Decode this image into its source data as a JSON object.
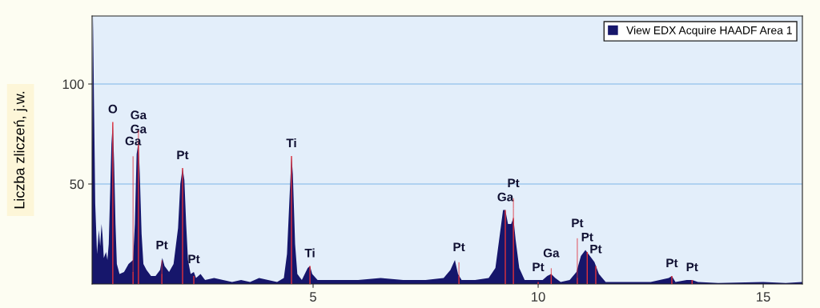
{
  "chart_data": {
    "type": "area",
    "ylabel": "Liczba zliczeń, j.w.",
    "xlim": [
      0.09,
      15.87
    ],
    "ylim": [
      0,
      134
    ],
    "xticks": [
      5,
      10,
      15
    ],
    "yticks": [
      50,
      100
    ],
    "grid": "y",
    "legend": "top right",
    "series": [
      {
        "name": "View EDX Acquire HAADF Area 1",
        "color": "#16166b",
        "x": [
          0.09,
          0.11,
          0.13,
          0.16,
          0.2,
          0.24,
          0.27,
          0.3,
          0.32,
          0.35,
          0.4,
          0.43,
          0.46,
          0.49,
          0.52,
          0.55,
          0.58,
          0.61,
          0.64,
          0.7,
          0.8,
          0.9,
          0.95,
          1.0,
          1.04,
          1.08,
          1.12,
          1.15,
          1.19,
          1.23,
          1.3,
          1.4,
          1.5,
          1.6,
          1.65,
          1.7,
          1.8,
          1.9,
          2.0,
          2.05,
          2.1,
          2.14,
          2.18,
          2.22,
          2.28,
          2.35,
          2.4,
          2.5,
          2.6,
          2.8,
          3.0,
          3.2,
          3.4,
          3.6,
          3.8,
          4.0,
          4.2,
          4.35,
          4.42,
          4.48,
          4.52,
          4.55,
          4.6,
          4.65,
          4.75,
          4.88,
          4.93,
          4.98,
          5.1,
          5.5,
          6.0,
          6.5,
          7.0,
          7.5,
          7.9,
          8.05,
          8.15,
          8.22,
          8.3,
          8.6,
          8.9,
          9.05,
          9.15,
          9.22,
          9.27,
          9.33,
          9.4,
          9.45,
          9.5,
          9.58,
          9.7,
          9.9,
          10.1,
          10.2,
          10.29,
          10.38,
          10.5,
          10.7,
          10.85,
          10.95,
          11.05,
          11.15,
          11.25,
          11.35,
          11.5,
          12.0,
          12.5,
          12.9,
          12.97,
          13.05,
          13.3,
          13.42,
          13.55,
          14.0,
          15.0,
          15.5,
          15.87
        ],
        "values": [
          65,
          134,
          95,
          40,
          15,
          27,
          19,
          30,
          25,
          13,
          16,
          12,
          20,
          45,
          70,
          81,
          60,
          30,
          10,
          5,
          6,
          10,
          11,
          12,
          30,
          65,
          71,
          55,
          25,
          10,
          7,
          4,
          4,
          7,
          13,
          9,
          6,
          10,
          28,
          50,
          58,
          52,
          30,
          12,
          5,
          6,
          3,
          5,
          2,
          3,
          2,
          1,
          2,
          1,
          3,
          2,
          1,
          3,
          15,
          45,
          64,
          55,
          20,
          5,
          2,
          8,
          9,
          5,
          2,
          2,
          2,
          3,
          2,
          2,
          3,
          7,
          12,
          5,
          2,
          2,
          3,
          8,
          25,
          37,
          37,
          30,
          30,
          33,
          22,
          8,
          2,
          2,
          2,
          4,
          5,
          3,
          1,
          2,
          6,
          14,
          17,
          14,
          11,
          5,
          1,
          1,
          1,
          3,
          4,
          1,
          2,
          2,
          1,
          0.5,
          1,
          0.5,
          1
        ]
      },
      {
        "type": "bar",
        "color": "#e0303a",
        "x": [
          0.55,
          1.0,
          1.12,
          1.64,
          2.1,
          2.35,
          4.52,
          4.93,
          8.24,
          9.27,
          9.45,
          10.0,
          10.29,
          10.87,
          11.09,
          11.28,
          12.97,
          13.42
        ],
        "values": [
          81,
          6,
          71,
          5,
          58,
          4,
          64,
          9,
          4,
          37,
          33,
          1,
          5,
          3,
          16,
          9,
          4,
          2
        ]
      }
    ],
    "annotations": [
      {
        "text": "O",
        "x": 0.55,
        "y": 81
      },
      {
        "text": "Ga",
        "x": 1.12,
        "y": 71
      },
      {
        "text": "Ga",
        "x": 1.12,
        "y": 71
      },
      {
        "text": "Ga",
        "x": 1.0,
        "y": 6
      },
      {
        "text": "Pt",
        "x": 2.1,
        "y": 58
      },
      {
        "text": "Pt",
        "x": 1.64,
        "y": 5
      },
      {
        "text": "Pt",
        "x": 2.35,
        "y": 4
      },
      {
        "text": "Ti",
        "x": 4.52,
        "y": 64
      },
      {
        "text": "Ti",
        "x": 4.93,
        "y": 9
      },
      {
        "text": "Pt",
        "x": 8.24,
        "y": 4
      },
      {
        "text": "Ga",
        "x": 9.27,
        "y": 37
      },
      {
        "text": "Pt",
        "x": 9.45,
        "y": 33
      },
      {
        "text": "Pt",
        "x": 10.0,
        "y": 1
      },
      {
        "text": "Ga",
        "x": 10.29,
        "y": 5
      },
      {
        "text": "Pt",
        "x": 11.09,
        "y": 16
      },
      {
        "text": "Pt",
        "x": 10.87,
        "y": 3
      },
      {
        "text": "Pt",
        "x": 11.28,
        "y": 9
      },
      {
        "text": "Pt",
        "x": 12.97,
        "y": 4
      },
      {
        "text": "Pt",
        "x": 13.42,
        "y": 2
      }
    ]
  }
}
